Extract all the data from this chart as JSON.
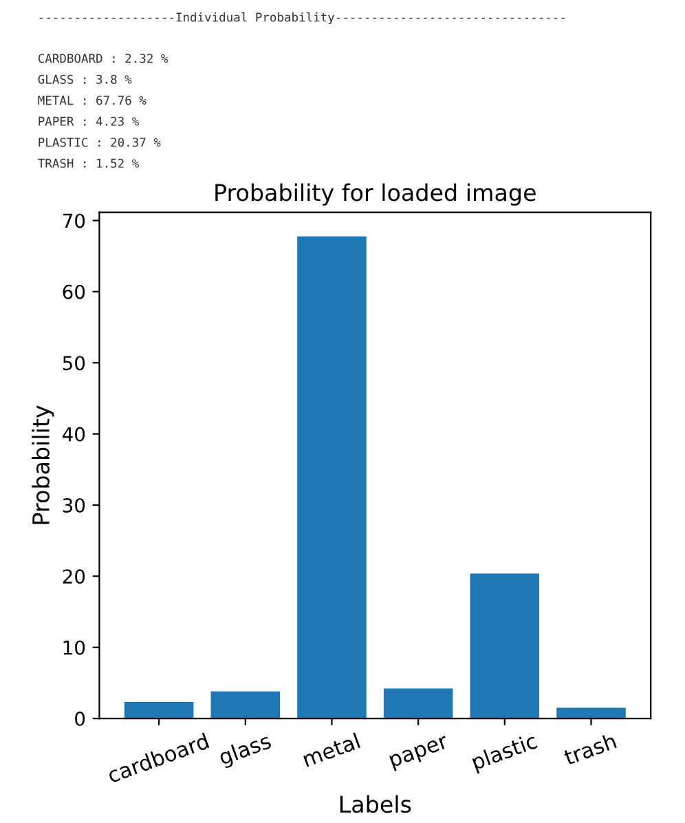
{
  "chart_data": {
    "type": "bar",
    "title": "Probability for loaded image",
    "xlabel": "Labels",
    "ylabel": "Probability",
    "categories": [
      "cardboard",
      "glass",
      "metal",
      "paper",
      "plastic",
      "trash"
    ],
    "values": [
      2.32,
      3.8,
      67.76,
      4.23,
      20.37,
      1.52
    ],
    "color": "#1f77b4",
    "ylim": [
      0,
      71.15
    ],
    "yticks": [
      0,
      10,
      20,
      30,
      40,
      50,
      60,
      70
    ],
    "grid": false,
    "annotations": [
      "-------------------Individual Probability--------------------------------",
      "CARDBOARD : 2.32 %",
      "GLASS : 3.8 %",
      "METAL : 67.76 %",
      "PAPER : 4.23 %",
      "PLASTIC : 20.37 %",
      "TRASH : 1.52 %"
    ]
  }
}
